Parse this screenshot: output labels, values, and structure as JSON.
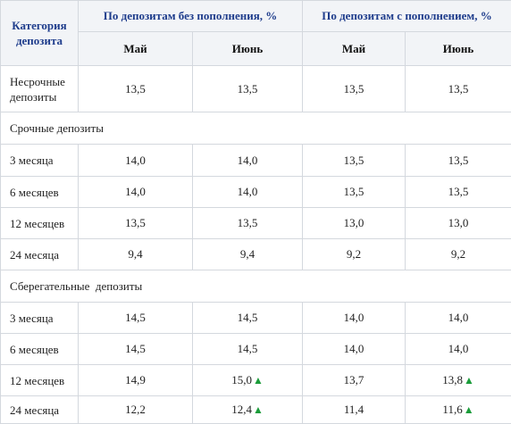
{
  "header": {
    "category": [
      "Категория",
      "депозита"
    ],
    "group_no_topup": "По депозитам без пополнения, %",
    "group_topup": "По депозитам с пополнением, %",
    "months": [
      "Май",
      "Июнь",
      "Май",
      "Июнь"
    ]
  },
  "rows": [
    {
      "label": [
        "Несрочные",
        "депозиты"
      ],
      "values": [
        "13,5",
        "13,5",
        "13,5",
        "13,5"
      ]
    },
    {
      "section": "Срочные депозиты"
    },
    {
      "label": [
        "3 месяца"
      ],
      "values": [
        "14,0",
        "14,0",
        "13,5",
        "13,5"
      ]
    },
    {
      "label": [
        "6 месяцев"
      ],
      "values": [
        "14,0",
        "14,0",
        "13,5",
        "13,5"
      ]
    },
    {
      "label": [
        "12 месяцев"
      ],
      "values": [
        "13,5",
        "13,5",
        "13,0",
        "13,0"
      ]
    },
    {
      "label": [
        "24 месяца"
      ],
      "values": [
        "9,4",
        "9,4",
        "9,2",
        "9,2"
      ]
    },
    {
      "section": "Сберегательные  депозиты"
    },
    {
      "label": [
        "3 месяца"
      ],
      "values": [
        "14,5",
        "14,5",
        "14,0",
        "14,0"
      ]
    },
    {
      "label": [
        "6 месяцев"
      ],
      "values": [
        "14,5",
        "14,5",
        "14,0",
        "14,0"
      ]
    },
    {
      "label": [
        "12 месяцев"
      ],
      "values": [
        "14,9",
        "15,0",
        "13,7",
        "13,8"
      ],
      "up": [
        false,
        true,
        false,
        true
      ]
    },
    {
      "label": [
        "24 месяца"
      ],
      "values": [
        "12,2",
        "12,4",
        "11,4",
        "11,6"
      ],
      "up": [
        false,
        true,
        false,
        true
      ]
    }
  ],
  "icons": {
    "increase": "up-triangle-icon",
    "increase_glyph": "▲",
    "increase_color": "#1b9c3a"
  }
}
